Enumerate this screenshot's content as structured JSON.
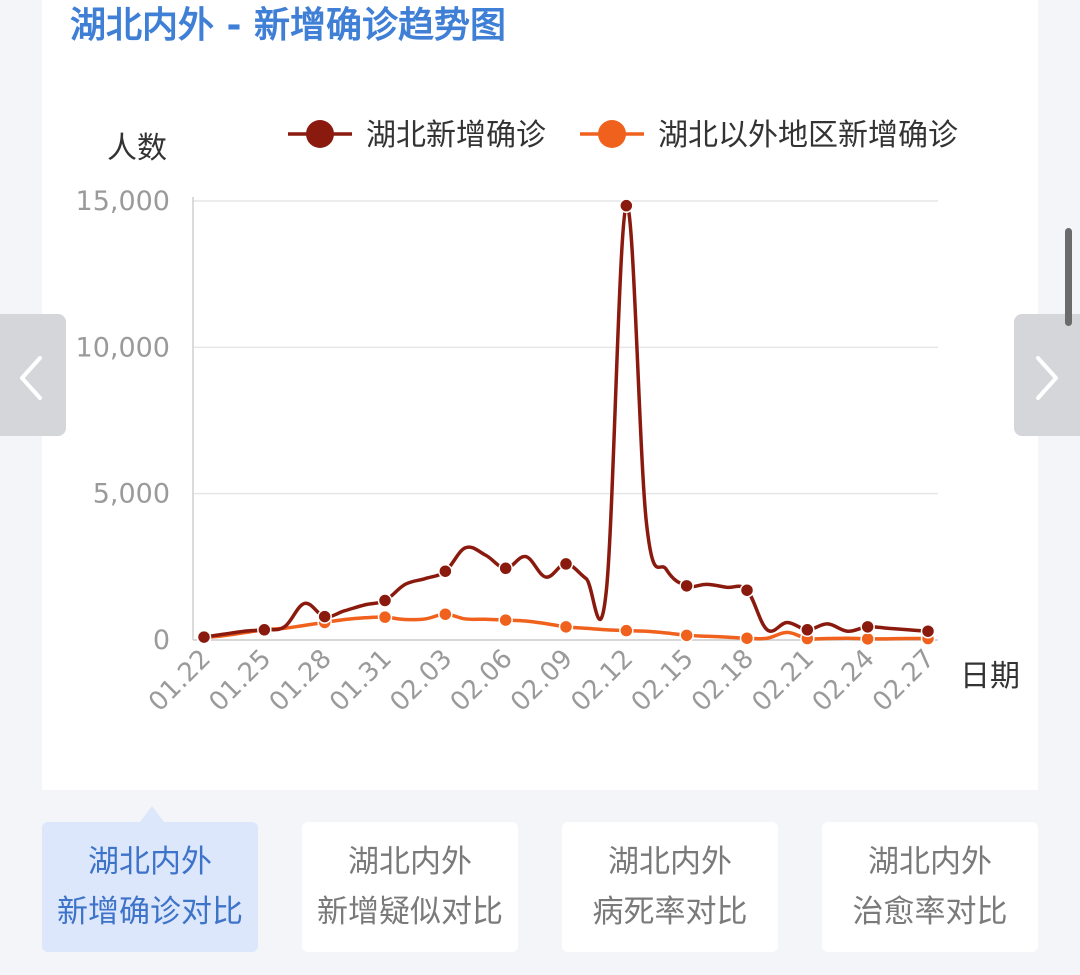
{
  "title": "湖北内外 - 新增确诊趋势图",
  "tabs": [
    {
      "line1": "湖北内外",
      "line2": "新增确诊对比",
      "active": true
    },
    {
      "line1": "湖北内外",
      "line2": "新增疑似对比",
      "active": false
    },
    {
      "line1": "湖北内外",
      "line2": "病死率对比",
      "active": false
    },
    {
      "line1": "湖北内外",
      "line2": "治愈率对比",
      "active": false
    }
  ],
  "chart_data": {
    "type": "line",
    "title": "湖北内外 - 新增确诊趋势图",
    "xlabel": "日期",
    "ylabel": "人数",
    "ylim": [
      0,
      15000
    ],
    "yticks": [
      0,
      5000,
      10000,
      15000
    ],
    "ytick_labels": [
      "0",
      "5,000",
      "10,000",
      "15,000"
    ],
    "xtick_labels": [
      "01.22",
      "01.25",
      "01.28",
      "01.31",
      "02.03",
      "02.06",
      "02.09",
      "02.12",
      "02.15",
      "02.18",
      "02.21",
      "02.24",
      "02.27"
    ],
    "grid": true,
    "legend_position": "top",
    "x": [
      "01.22",
      "01.23",
      "01.24",
      "01.25",
      "01.26",
      "01.27",
      "01.28",
      "01.29",
      "01.30",
      "01.31",
      "02.01",
      "02.02",
      "02.03",
      "02.04",
      "02.05",
      "02.06",
      "02.07",
      "02.08",
      "02.09",
      "02.10",
      "02.11",
      "02.12",
      "02.13",
      "02.14",
      "02.15",
      "02.16",
      "02.17",
      "02.18",
      "02.19",
      "02.20",
      "02.21",
      "02.22",
      "02.23",
      "02.24",
      "02.25",
      "02.26",
      "02.27"
    ],
    "series": [
      {
        "name": "湖北新增确诊",
        "color": "#8b1a0e",
        "values": [
          100,
          200,
          300,
          350,
          450,
          1250,
          800,
          1000,
          1200,
          1350,
          1900,
          2100,
          2350,
          3150,
          2900,
          2450,
          2850,
          2150,
          2600,
          2100,
          1650,
          14840,
          4000,
          2400,
          1850,
          1900,
          1800,
          1700,
          350,
          600,
          350,
          550,
          300,
          450,
          400,
          350,
          300
        ]
      },
      {
        "name": "湖北以外地区新增确诊",
        "color": "#f0611e",
        "values": [
          80,
          150,
          250,
          350,
          400,
          500,
          600,
          700,
          760,
          780,
          700,
          720,
          880,
          720,
          710,
          680,
          650,
          560,
          450,
          400,
          350,
          320,
          300,
          240,
          160,
          130,
          100,
          60,
          60,
          260,
          50,
          50,
          60,
          40,
          40,
          50,
          50
        ]
      }
    ]
  }
}
